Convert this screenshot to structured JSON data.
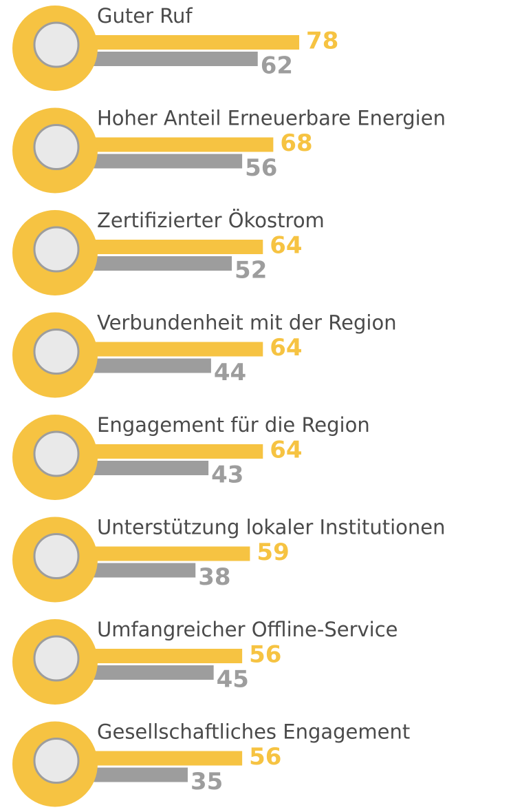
{
  "chart_data": {
    "type": "bar",
    "categories": [
      "Guter Ruf",
      "Hoher Anteil Erneuerbare Energien",
      "Zertifizierter Ökostrom",
      "Verbundenheit mit der Region",
      "Engagement für die Region",
      "Unterstützung lokaler Institutionen",
      "Umfangreicher Offline-Service",
      "Gesellschaftliches Engagement"
    ],
    "series": [
      {
        "color": "#f6c342",
        "values": [
          78,
          68,
          64,
          64,
          64,
          59,
          56,
          56
        ]
      },
      {
        "color": "#9d9d9d",
        "values": [
          62,
          56,
          52,
          44,
          43,
          38,
          45,
          35
        ]
      }
    ]
  }
}
